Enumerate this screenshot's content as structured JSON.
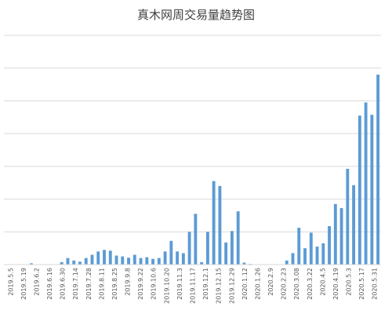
{
  "chart_data": {
    "type": "bar",
    "title": "真木网周交易量趋势图",
    "xlabel": "",
    "ylabel": "",
    "grid": true,
    "legend": "none",
    "bar_color": "#5B9BD5",
    "gridline_color": "#D9D9D9",
    "ylim": [
      0,
      140
    ],
    "tick_labels": [
      "2019.5.5",
      "2019.5.19",
      "2019.6.2",
      "2019.6.16",
      "2019.6.30",
      "2019.7.14",
      "2019.7.28",
      "2019.8.11",
      "2019.8.25",
      "2019.9.8",
      "2019.9.22",
      "2019.10.6",
      "2019.10.20",
      "2019.11.3",
      "2019.11.17",
      "2019.12.1",
      "2019.12.15",
      "2019.12.29",
      "2020.1.12",
      "2020.1.26",
      "2020.2.9",
      "2020.2.23",
      "2020.3.08",
      "2020.3.22",
      "2020.4.5",
      "2020.4.19",
      "2020.5.3",
      "2020.5.17",
      "2020.5.31"
    ],
    "values": [
      0,
      0,
      0,
      0,
      0.8,
      0,
      0,
      0,
      0,
      1.5,
      4,
      2.5,
      1.8,
      4,
      6,
      8,
      9,
      8.5,
      5.5,
      5,
      4.2,
      6,
      4,
      4.5,
      3.5,
      4,
      8,
      14.5,
      8,
      7,
      20,
      31,
      1.5,
      20,
      51,
      48,
      13.5,
      20.5,
      32.5,
      1.2,
      0.4,
      0,
      0,
      0,
      0,
      0,
      2.5,
      7,
      22.5,
      10,
      19.5,
      11,
      13,
      23.5,
      37,
      34.5,
      58.5,
      48.5,
      91,
      99,
      91.5,
      116
    ]
  }
}
